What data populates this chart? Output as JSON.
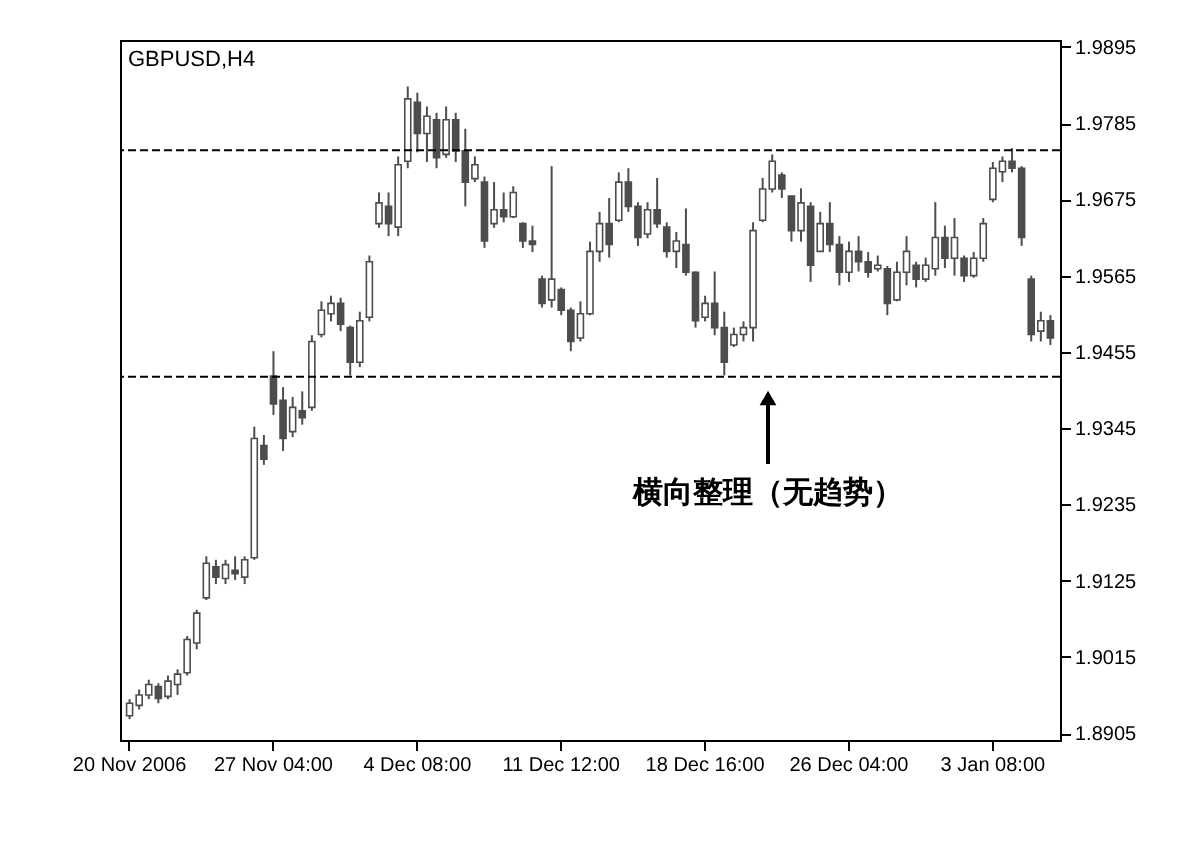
{
  "chart_data": {
    "type": "candlestick",
    "title": "GBPUSD,H4",
    "color": "#4d4d4d",
    "categories": [
      "20 Nov 2006",
      null,
      null,
      null,
      null,
      null,
      null,
      null,
      null,
      null,
      null,
      null,
      null,
      null,
      null,
      "27 Nov 04:00",
      null,
      null,
      null,
      null,
      null,
      null,
      null,
      null,
      null,
      null,
      null,
      null,
      null,
      null,
      "4 Dec 08:00",
      null,
      null,
      null,
      null,
      null,
      null,
      null,
      null,
      null,
      null,
      null,
      null,
      null,
      null,
      "11 Dec 12:00",
      null,
      null,
      null,
      null,
      null,
      null,
      null,
      null,
      null,
      null,
      null,
      null,
      null,
      null,
      "18 Dec 16:00",
      null,
      null,
      null,
      null,
      null,
      null,
      null,
      null,
      null,
      null,
      null,
      null,
      null,
      null,
      "26 Dec 04:00",
      null,
      null,
      null,
      null,
      null,
      null,
      null,
      null,
      null,
      null,
      null,
      null,
      null,
      null,
      "3 Jan 08:00",
      null,
      null,
      null,
      null,
      null,
      null
    ],
    "ohlc": [
      [
        1.893,
        1.8954,
        1.8925,
        1.8948
      ],
      [
        1.8945,
        1.8968,
        1.8939,
        1.896
      ],
      [
        1.896,
        1.8982,
        1.8954,
        1.8975
      ],
      [
        1.8972,
        1.8977,
        1.8948,
        1.8955
      ],
      [
        1.8958,
        1.8988,
        1.8954,
        1.898
      ],
      [
        1.8975,
        1.8997,
        1.896,
        1.899
      ],
      [
        1.8992,
        1.9045,
        1.8988,
        1.904
      ],
      [
        1.9035,
        1.9083,
        1.9026,
        1.9078
      ],
      [
        1.91,
        1.916,
        1.9097,
        1.915
      ],
      [
        1.9145,
        1.9155,
        1.912,
        1.913
      ],
      [
        1.9128,
        1.9155,
        1.912,
        1.9148
      ],
      [
        1.914,
        1.916,
        1.9126,
        1.9135
      ],
      [
        1.913,
        1.916,
        1.912,
        1.9155
      ],
      [
        1.9158,
        1.9347,
        1.9155,
        1.933
      ],
      [
        1.932,
        1.9335,
        1.9292,
        1.93
      ],
      [
        1.942,
        1.9456,
        1.9364,
        1.938
      ],
      [
        1.9385,
        1.9404,
        1.9312,
        1.933
      ],
      [
        1.934,
        1.939,
        1.9332,
        1.9375
      ],
      [
        1.937,
        1.9398,
        1.935,
        1.936
      ],
      [
        1.9375,
        1.9479,
        1.937,
        1.947
      ],
      [
        1.948,
        1.9528,
        1.9476,
        1.9515
      ],
      [
        1.951,
        1.9536,
        1.9499,
        1.9525
      ],
      [
        1.9525,
        1.9533,
        1.9485,
        1.9495
      ],
      [
        1.949,
        1.9493,
        1.9421,
        1.944
      ],
      [
        1.944,
        1.9513,
        1.9433,
        1.95
      ],
      [
        1.9505,
        1.9594,
        1.9499,
        1.9585
      ],
      [
        1.964,
        1.9685,
        1.9634,
        1.967
      ],
      [
        1.9665,
        1.9685,
        1.9622,
        1.964
      ],
      [
        1.9635,
        1.9737,
        1.9622,
        1.9725
      ],
      [
        1.973,
        1.9838,
        1.972,
        1.982
      ],
      [
        1.9815,
        1.9829,
        1.9743,
        1.977
      ],
      [
        1.977,
        1.9809,
        1.9729,
        1.9795
      ],
      [
        1.979,
        1.98,
        1.972,
        1.9735
      ],
      [
        1.974,
        1.9809,
        1.9735,
        1.979
      ],
      [
        1.979,
        1.98,
        1.9729,
        1.9745
      ],
      [
        1.9745,
        1.9777,
        1.9665,
        1.97
      ],
      [
        1.9705,
        1.9737,
        1.97,
        1.9725
      ],
      [
        1.97,
        1.9708,
        1.9605,
        1.9615
      ],
      [
        1.964,
        1.97,
        1.9634,
        1.966
      ],
      [
        1.966,
        1.9685,
        1.9642,
        1.965
      ],
      [
        1.965,
        1.9694,
        1.9648,
        1.9685
      ],
      [
        1.964,
        1.9642,
        1.9605,
        1.9615
      ],
      [
        1.9615,
        1.9637,
        1.9599,
        1.961
      ],
      [
        1.956,
        1.9565,
        1.9519,
        1.9525
      ],
      [
        1.953,
        1.9723,
        1.9519,
        1.956
      ],
      [
        1.9545,
        1.9548,
        1.9508,
        1.9515
      ],
      [
        1.9515,
        1.9519,
        1.9456,
        1.947
      ],
      [
        1.9475,
        1.9528,
        1.947,
        1.951
      ],
      [
        1.951,
        1.9614,
        1.9508,
        1.96
      ],
      [
        1.96,
        1.9657,
        1.9585,
        1.964
      ],
      [
        1.964,
        1.9677,
        1.9591,
        1.961
      ],
      [
        1.9645,
        1.9714,
        1.9642,
        1.97
      ],
      [
        1.97,
        1.972,
        1.9657,
        1.9665
      ],
      [
        1.9665,
        1.9671,
        1.9608,
        1.962
      ],
      [
        1.9625,
        1.9671,
        1.9619,
        1.966
      ],
      [
        1.966,
        1.9706,
        1.9634,
        1.964
      ],
      [
        1.9635,
        1.9642,
        1.9591,
        1.96
      ],
      [
        1.96,
        1.9628,
        1.9576,
        1.9615
      ],
      [
        1.961,
        1.9662,
        1.9565,
        1.957
      ],
      [
        1.957,
        1.9571,
        1.949,
        1.95
      ],
      [
        1.9505,
        1.9536,
        1.9499,
        1.9525
      ],
      [
        1.9525,
        1.9571,
        1.9479,
        1.949
      ],
      [
        1.949,
        1.9513,
        1.9421,
        1.944
      ],
      [
        1.9465,
        1.949,
        1.9462,
        1.948
      ],
      [
        1.948,
        1.9499,
        1.947,
        1.949
      ],
      [
        1.949,
        1.9642,
        1.947,
        1.963
      ],
      [
        1.9645,
        1.9706,
        1.9642,
        1.969
      ],
      [
        1.969,
        1.974,
        1.9685,
        1.973
      ],
      [
        1.971,
        1.9714,
        1.9677,
        1.969
      ],
      [
        1.968,
        1.968,
        1.9614,
        1.963
      ],
      [
        1.963,
        1.9691,
        1.9614,
        1.967
      ],
      [
        1.9665,
        1.9671,
        1.9556,
        1.958
      ],
      [
        1.96,
        1.9657,
        1.9599,
        1.964
      ],
      [
        1.964,
        1.9671,
        1.9599,
        1.961
      ],
      [
        1.961,
        1.9622,
        1.9551,
        1.957
      ],
      [
        1.957,
        1.9614,
        1.9556,
        1.96
      ],
      [
        1.96,
        1.9622,
        1.9571,
        1.9585
      ],
      [
        1.9585,
        1.9599,
        1.9562,
        1.957
      ],
      [
        1.9575,
        1.9594,
        1.9571,
        1.958
      ],
      [
        1.9575,
        1.9579,
        1.9508,
        1.9525
      ],
      [
        1.953,
        1.9585,
        1.9528,
        1.957
      ],
      [
        1.957,
        1.9622,
        1.9551,
        1.96
      ],
      [
        1.958,
        1.9585,
        1.9548,
        1.956
      ],
      [
        1.956,
        1.9591,
        1.9556,
        1.958
      ],
      [
        1.9575,
        1.9671,
        1.9565,
        1.962
      ],
      [
        1.962,
        1.9637,
        1.9576,
        1.959
      ],
      [
        1.959,
        1.9648,
        1.9565,
        1.962
      ],
      [
        1.959,
        1.9594,
        1.9556,
        1.9565
      ],
      [
        1.9565,
        1.9599,
        1.9562,
        1.959
      ],
      [
        1.959,
        1.9648,
        1.9585,
        1.964
      ],
      [
        1.9675,
        1.9729,
        1.9671,
        1.972
      ],
      [
        1.9715,
        1.9737,
        1.97,
        1.973
      ],
      [
        1.973,
        1.9749,
        1.9714,
        1.972
      ],
      [
        1.972,
        1.9723,
        1.9608,
        1.962
      ],
      [
        1.956,
        1.9565,
        1.947,
        1.948
      ],
      [
        1.9485,
        1.9513,
        1.947,
        1.95
      ],
      [
        1.95,
        1.9508,
        1.9465,
        1.9475
      ]
    ],
    "ylim": [
      1.8895,
      1.9905
    ],
    "yticks": [
      1.8905,
      1.9015,
      1.9125,
      1.9235,
      1.9345,
      1.9455,
      1.9565,
      1.9675,
      1.9785,
      1.9895
    ],
    "ref_lines": [
      {
        "axis": "y",
        "value": 1.9746,
        "color": "#000000",
        "line_style": "dashed"
      },
      {
        "axis": "y",
        "value": 1.9419,
        "color": "#000000",
        "line_style": "dashed"
      }
    ],
    "annotations": [
      "横向整理（无趋势）"
    ],
    "grid": false
  }
}
